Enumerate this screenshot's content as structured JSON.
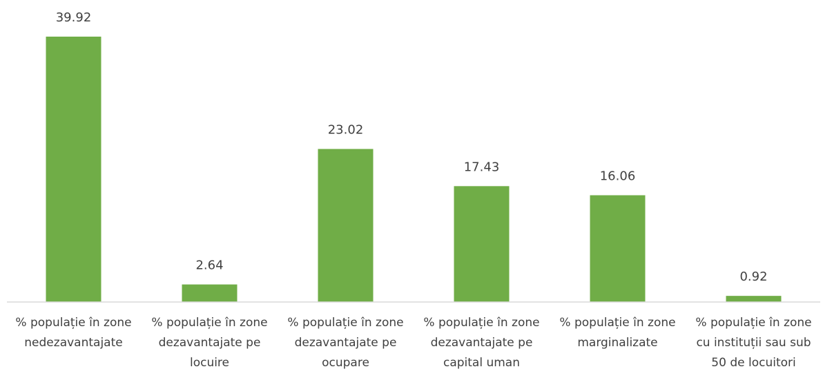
{
  "chart_data": {
    "type": "bar",
    "categories": [
      "% populație în zone nedezavantajate",
      "% populație în zone dezavantajate pe locuire",
      "% populație în zone dezavantajate pe ocupare",
      "% populație în zone dezavantajate pe capital uman",
      "% populație în zone marginalizate",
      "% populație în zone cu instituții sau sub 50 de locuitori"
    ],
    "values": [
      39.92,
      2.64,
      23.02,
      17.43,
      16.06,
      0.92
    ],
    "color": "#70ad47"
  }
}
